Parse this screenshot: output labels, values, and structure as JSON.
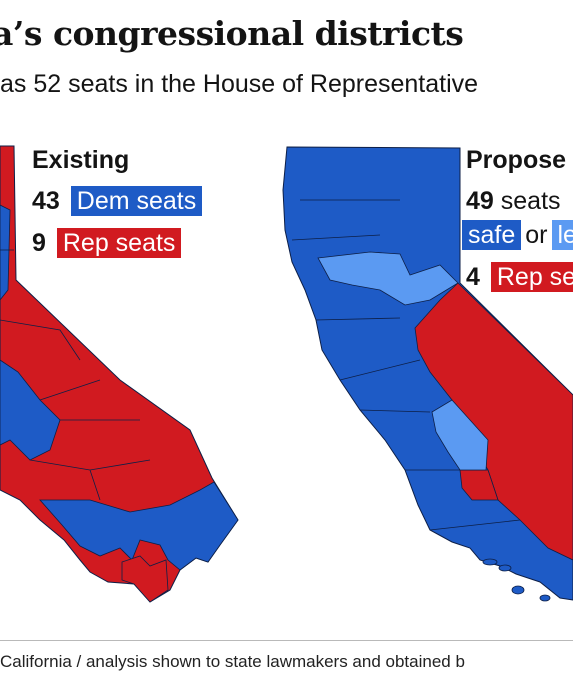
{
  "title": "a’s congressional districts",
  "subtitle": "as 52 seats in the House of Representative",
  "maps": [
    {
      "heading": "Existing",
      "rows": [
        {
          "number": "43",
          "label": "Dem seats",
          "party": "dem"
        },
        {
          "number": "9",
          "label": "Rep seats",
          "party": "rep"
        }
      ]
    },
    {
      "heading": "Propose",
      "row1_number": "49",
      "row1_text": "seats",
      "safe_label": "safe",
      "or_text": "or",
      "lean_label": "le",
      "row3_number": "4",
      "row3_label": "Rep se"
    }
  ],
  "colors": {
    "dem": "#1E5BC6",
    "dem_lean": "#5B9AF2",
    "rep": "#D11A20",
    "border": "#0d1f47"
  },
  "source": "California / analysis shown to state lawmakers and obtained b"
}
